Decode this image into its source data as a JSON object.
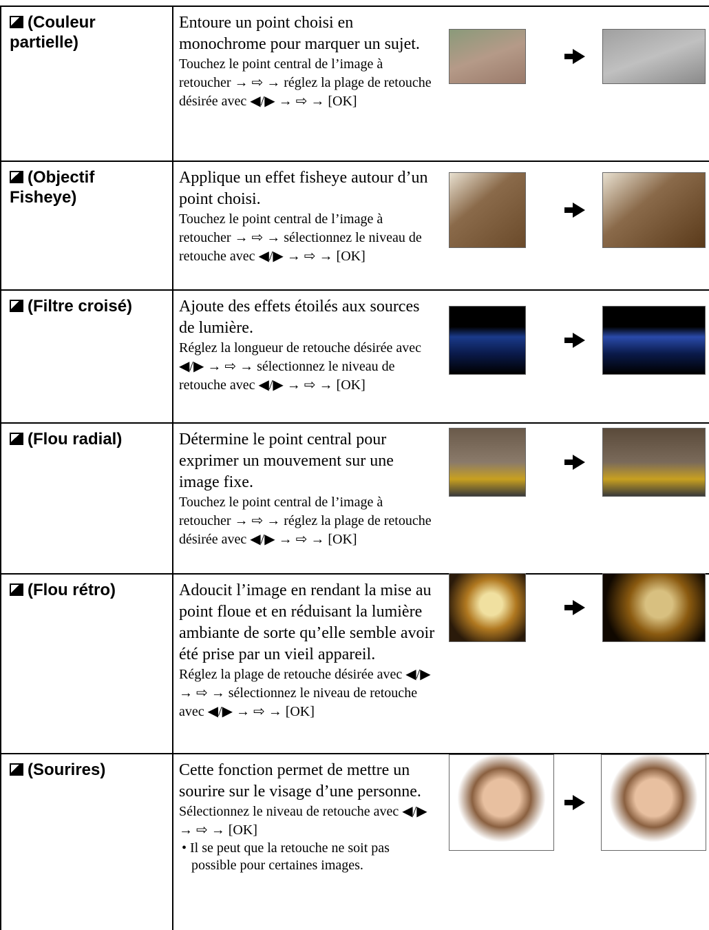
{
  "table": {
    "rows": [
      {
        "label": "(Couleur partielle)",
        "description": "Entoure un point choisi en monochrome pour marquer un sujet.",
        "instruction": "Touchez le point central de l’image à retoucher → ⇨ → réglez la plage de retouche désirée avec ◀/▶ → ⇨ → [OK]"
      },
      {
        "label": "(Objectif Fisheye)",
        "description": "Applique un effet fisheye autour d’un point choisi.",
        "instruction": "Touchez le point central de l’image à retoucher → ⇨ → sélectionnez le niveau de retouche avec ◀/▶ → ⇨ → [OK]"
      },
      {
        "label": "(Filtre croisé)",
        "description": "Ajoute des effets étoilés aux sources de lumière.",
        "instruction": "Réglez la longueur de retouche désirée avec ◀/▶ → ⇨ → sélectionnez le niveau de retouche avec ◀/▶ → ⇨ → [OK]"
      },
      {
        "label": "(Flou radial)",
        "description": "Détermine le point central pour exprimer un mouvement sur une image fixe.",
        "instruction": "Touchez le point central de l’image à retoucher → ⇨ → réglez la plage de retouche désirée avec ◀/▶ → ⇨ → [OK]"
      },
      {
        "label": "(Flou rétro)",
        "description": "Adoucit l’image en rendant la mise au point floue et en réduisant la lumière ambiante de sorte qu’elle semble avoir été prise par un vieil appareil.",
        "instruction": "Réglez la plage de retouche désirée avec ◀/▶ → ⇨ → sélectionnez le niveau de retouche avec ◀/▶ → ⇨ → [OK]"
      },
      {
        "label": "(Sourires)",
        "description": "Cette fonction permet de mettre un sourire sur le visage d’une personne.",
        "instruction": "Sélectionnez le niveau de retouche avec ◀/▶ → ⇨ → [OK]",
        "note": "Il se peut que la retouche ne soit pas possible pour certaines images."
      }
    ]
  }
}
